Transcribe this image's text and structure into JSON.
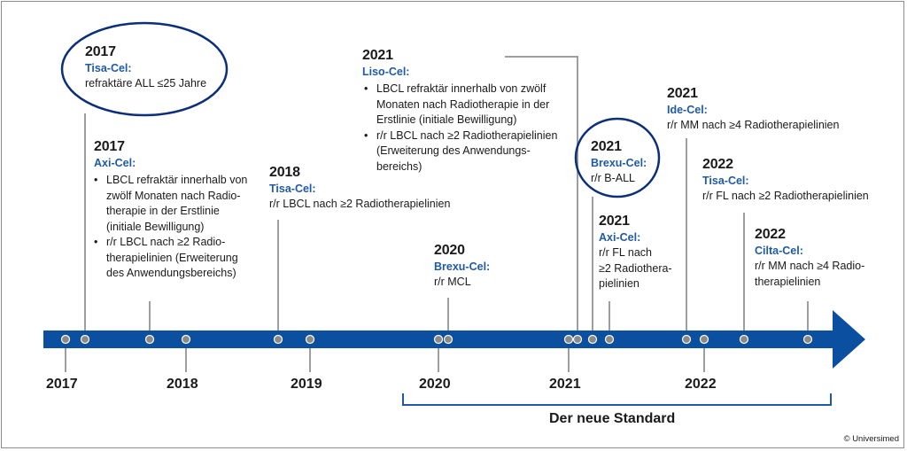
{
  "colors": {
    "arrow": "#0b4fa0",
    "accent_text": "#1f5aa6",
    "lines": "#9e9e9e",
    "marker": "#8a8a8a"
  },
  "axis": {
    "years": [
      "2017",
      "2018",
      "2019",
      "2020",
      "2021",
      "2022"
    ]
  },
  "events": {
    "e1": {
      "year": "2017",
      "drug": "Tisa-Cel:",
      "lines": [
        "refraktäre ALL ≤25 Jahre"
      ],
      "highlighted": true
    },
    "e2": {
      "year": "2017",
      "drug": "Axi-Cel:",
      "bullets": [
        "LBCL refraktär innerhalb von zwölf Monaten nach Radio­therapie in der Erstlinie (initiale Bewilligung)",
        "r/r LBCL nach ≥2 Radio­therapielinien (Erweiterung des Anwendungsbereichs)"
      ]
    },
    "e3": {
      "year": "2018",
      "drug": "Tisa-Cel:",
      "lines": [
        "r/r LBCL nach ≥2 Radiotherapielinien"
      ]
    },
    "e4": {
      "year": "2020",
      "drug": "Brexu-Cel:",
      "lines": [
        "r/r MCL"
      ]
    },
    "e5": {
      "year": "2021",
      "drug": "Liso-Cel:",
      "bullets": [
        "LBCL refraktär innerhalb von zwölf Monaten nach Radiotherapie in der Erstlinie (initiale Bewilligung)",
        "r/r LBCL nach ≥2 Radiotherapielinien (Erweiterung des Anwendungs­bereichs)"
      ]
    },
    "e6": {
      "year": "2021",
      "drug": "Brexu-Cel:",
      "lines": [
        "r/r B-ALL"
      ],
      "highlighted": true
    },
    "e7": {
      "year": "2021",
      "drug": "Axi-Cel:",
      "lines": [
        "r/r FL nach",
        "≥2 Radiothera-",
        "pielinien"
      ]
    },
    "e8": {
      "year": "2021",
      "drug": "Ide-Cel:",
      "lines": [
        "r/r MM nach ≥4 Radiotherapielinien"
      ]
    },
    "e9": {
      "year": "2022",
      "drug": "Tisa-Cel:",
      "lines": [
        "r/r FL nach ≥2 Radiotherapielinien"
      ]
    },
    "e10": {
      "year": "2022",
      "drug": "Cilta-Cel:",
      "lines": [
        "r/r MM nach ≥4 Radio-",
        "therapielinien"
      ]
    }
  },
  "bracket_label": "Der neue Standard",
  "copyright": "© Universimed"
}
